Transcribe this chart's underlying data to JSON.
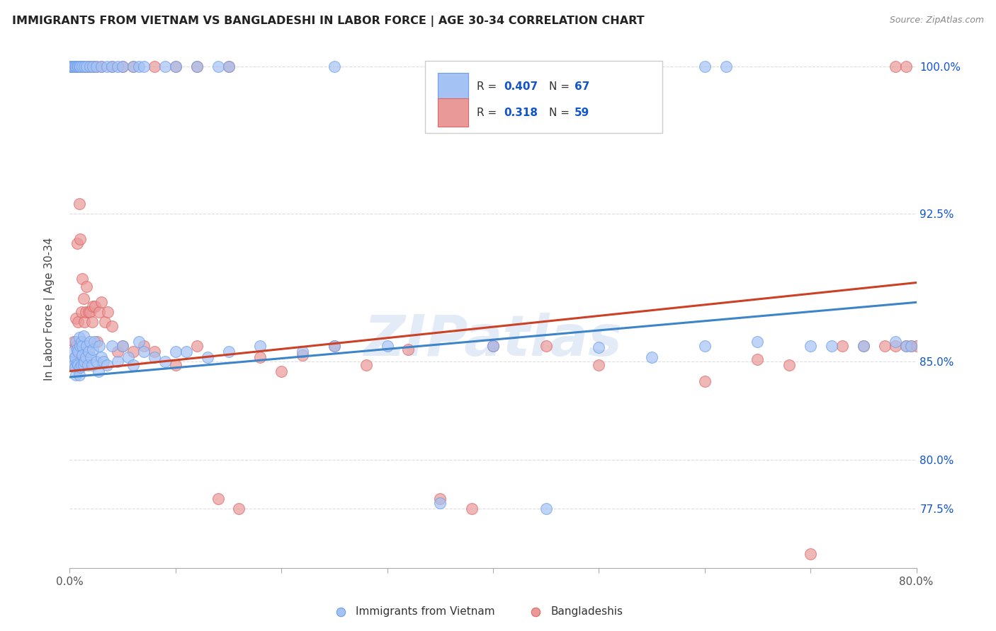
{
  "title": "IMMIGRANTS FROM VIETNAM VS BANGLADESHI IN LABOR FORCE | AGE 30-34 CORRELATION CHART",
  "source": "Source: ZipAtlas.com",
  "ylabel": "In Labor Force | Age 30-34",
  "legend_r1": "0.407",
  "legend_n1": "67",
  "legend_r2": "0.318",
  "legend_n2": "59",
  "color_vietnam": "#a4c2f4",
  "color_vietnam_edge": "#6d9eeb",
  "color_bangladesh": "#ea9999",
  "color_bangladesh_edge": "#e06666",
  "color_vietnam_line": "#3d85c8",
  "color_bangladesh_line": "#cc4125",
  "color_text_blue": "#1155cc",
  "color_text_dark": "#333333",
  "xmin": 0.0,
  "xmax": 0.8,
  "ymin": 0.745,
  "ymax": 1.008,
  "ytick_vals": [
    0.775,
    0.8,
    0.85,
    0.925,
    1.0
  ],
  "ytick_labels": [
    "77.5%",
    "80.0%",
    "85.0%",
    "92.5%",
    "100.0%"
  ],
  "watermark_text": "ZIPatlas",
  "background_color": "#ffffff",
  "grid_color": "#dddddd",
  "vietnam_scatter_x": [
    0.002,
    0.003,
    0.004,
    0.005,
    0.005,
    0.006,
    0.006,
    0.007,
    0.007,
    0.008,
    0.008,
    0.009,
    0.009,
    0.01,
    0.01,
    0.011,
    0.011,
    0.012,
    0.012,
    0.013,
    0.013,
    0.014,
    0.015,
    0.016,
    0.017,
    0.018,
    0.019,
    0.02,
    0.021,
    0.022,
    0.023,
    0.025,
    0.027,
    0.028,
    0.03,
    0.032,
    0.035,
    0.04,
    0.045,
    0.05,
    0.055,
    0.06,
    0.065,
    0.07,
    0.08,
    0.09,
    0.1,
    0.11,
    0.13,
    0.15,
    0.18,
    0.22,
    0.25,
    0.3,
    0.35,
    0.4,
    0.45,
    0.5,
    0.55,
    0.6,
    0.65,
    0.7,
    0.72,
    0.75,
    0.78,
    0.79,
    0.795
  ],
  "vietnam_scatter_y": [
    0.85,
    0.855,
    0.848,
    0.852,
    0.847,
    0.86,
    0.843,
    0.856,
    0.849,
    0.855,
    0.848,
    0.862,
    0.843,
    0.858,
    0.847,
    0.86,
    0.848,
    0.858,
    0.853,
    0.863,
    0.848,
    0.85,
    0.852,
    0.858,
    0.848,
    0.855,
    0.86,
    0.852,
    0.848,
    0.856,
    0.86,
    0.85,
    0.845,
    0.858,
    0.852,
    0.85,
    0.848,
    0.858,
    0.85,
    0.858,
    0.852,
    0.848,
    0.86,
    0.855,
    0.852,
    0.85,
    0.855,
    0.855,
    0.852,
    0.855,
    0.858,
    0.855,
    0.858,
    0.858,
    0.778,
    0.858,
    0.775,
    0.857,
    0.852,
    0.858,
    0.86,
    0.858,
    0.858,
    0.858,
    0.86,
    0.858,
    0.858
  ],
  "bangladesh_scatter_x": [
    0.003,
    0.004,
    0.005,
    0.006,
    0.006,
    0.007,
    0.007,
    0.008,
    0.009,
    0.009,
    0.01,
    0.011,
    0.012,
    0.013,
    0.014,
    0.015,
    0.016,
    0.018,
    0.019,
    0.021,
    0.022,
    0.024,
    0.026,
    0.028,
    0.03,
    0.033,
    0.036,
    0.04,
    0.045,
    0.05,
    0.06,
    0.07,
    0.08,
    0.1,
    0.12,
    0.14,
    0.16,
    0.18,
    0.2,
    0.22,
    0.25,
    0.28,
    0.32,
    0.35,
    0.38,
    0.4,
    0.45,
    0.5,
    0.6,
    0.65,
    0.68,
    0.7,
    0.73,
    0.75,
    0.77,
    0.78,
    0.79,
    0.795,
    0.8
  ],
  "bangladesh_scatter_y": [
    0.848,
    0.86,
    0.852,
    0.872,
    0.858,
    0.91,
    0.855,
    0.87,
    0.93,
    0.858,
    0.912,
    0.875,
    0.892,
    0.882,
    0.87,
    0.875,
    0.888,
    0.875,
    0.875,
    0.87,
    0.878,
    0.878,
    0.86,
    0.875,
    0.88,
    0.87,
    0.875,
    0.868,
    0.855,
    0.858,
    0.855,
    0.858,
    0.855,
    0.848,
    0.858,
    0.78,
    0.775,
    0.852,
    0.845,
    0.853,
    0.858,
    0.848,
    0.856,
    0.78,
    0.775,
    0.858,
    0.858,
    0.848,
    0.84,
    0.851,
    0.848,
    0.752,
    0.858,
    0.858,
    0.858,
    0.858,
    0.858,
    0.858,
    0.858
  ],
  "top_dots_vietnam_x": [
    0.001,
    0.002,
    0.003,
    0.004,
    0.005,
    0.006,
    0.007,
    0.008,
    0.009,
    0.01,
    0.012,
    0.014,
    0.016,
    0.019,
    0.022,
    0.025,
    0.03,
    0.035,
    0.04,
    0.045,
    0.05,
    0.06,
    0.065,
    0.07,
    0.09,
    0.1,
    0.12,
    0.14,
    0.15,
    0.25,
    0.35,
    0.6,
    0.62
  ],
  "top_dots_bangladesh_x": [
    0.001,
    0.002,
    0.003,
    0.004,
    0.005,
    0.006,
    0.007,
    0.008,
    0.009,
    0.01,
    0.012,
    0.015,
    0.018,
    0.022,
    0.025,
    0.03,
    0.04,
    0.05,
    0.06,
    0.08,
    0.1,
    0.12,
    0.15,
    0.78,
    0.79
  ],
  "viet_line_x": [
    0.0,
    0.8
  ],
  "viet_line_y": [
    0.842,
    0.88
  ],
  "bang_line_x": [
    0.0,
    0.8
  ],
  "bang_line_y": [
    0.845,
    0.89
  ]
}
